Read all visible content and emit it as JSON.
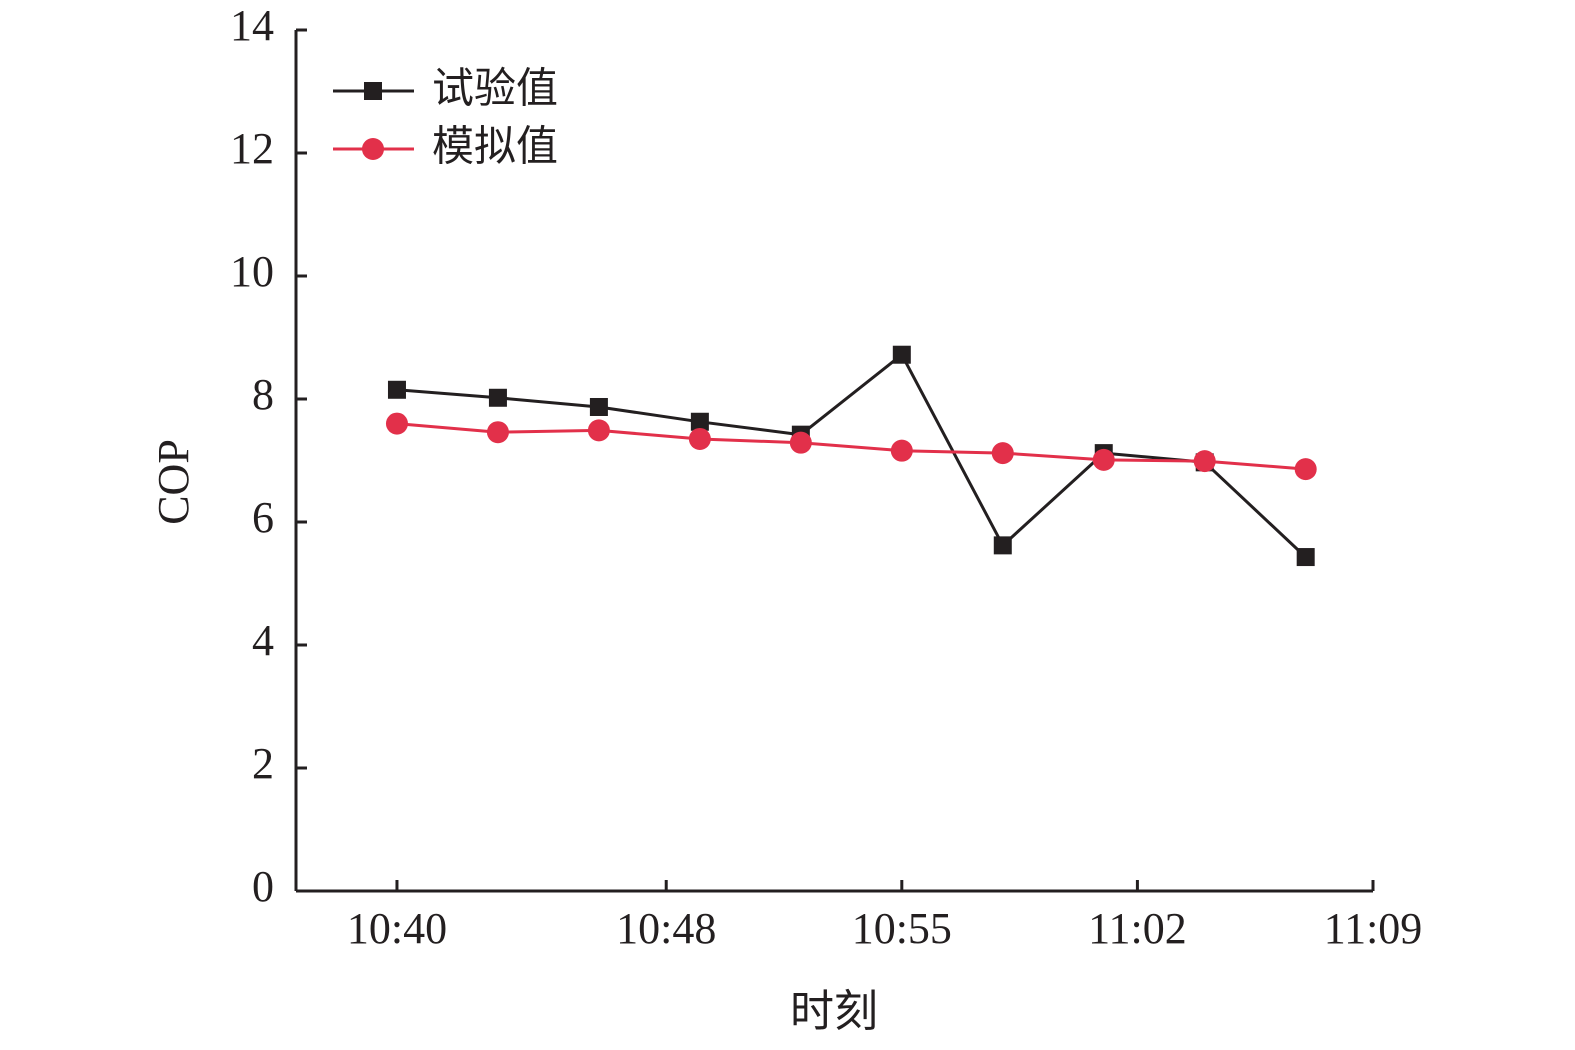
{
  "chart_data": {
    "type": "line",
    "xlabel": "时刻",
    "ylabel": "COP",
    "ylim": [
      0,
      14
    ],
    "yticks": [
      0,
      2,
      4,
      6,
      8,
      10,
      12,
      14
    ],
    "xlim": [
      "10:37",
      "11:09"
    ],
    "xticks": [
      "10:40",
      "10:48",
      "10:55",
      "11:02",
      "11:09"
    ],
    "x": [
      "10:40",
      "10:43",
      "10:46",
      "10:49",
      "10:52",
      "10:55",
      "10:58",
      "11:01",
      "11:04",
      "11:07"
    ],
    "legend_position": "top-left",
    "grid": false,
    "series": [
      {
        "name": "试验值",
        "color": "#231f20",
        "marker": "square",
        "values": [
          8.15,
          8.02,
          7.87,
          7.63,
          7.42,
          8.72,
          5.62,
          7.12,
          6.97,
          5.43
        ]
      },
      {
        "name": "模拟值",
        "color": "#e2304a",
        "marker": "circle",
        "values": [
          7.6,
          7.46,
          7.49,
          7.35,
          7.29,
          7.16,
          7.12,
          7.01,
          6.99,
          6.86
        ]
      }
    ]
  }
}
